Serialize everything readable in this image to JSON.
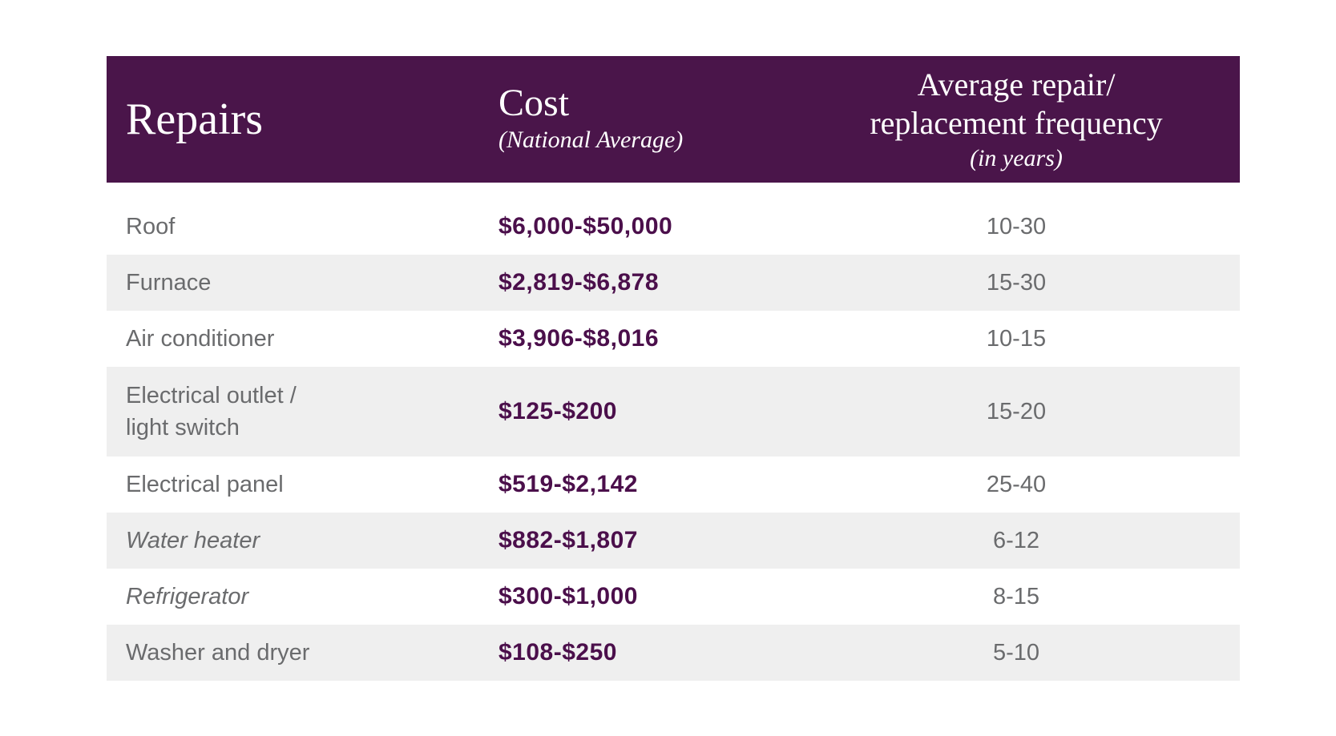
{
  "chart_data": {
    "type": "table",
    "columns": [
      {
        "label": "Repairs"
      },
      {
        "label": "Cost",
        "sublabel": "(National Average)"
      },
      {
        "label": "Average repair/\nreplacement frequency",
        "sublabel": "(in years)"
      }
    ],
    "rows": [
      {
        "repair": "Roof",
        "cost": "$6,000-$50,000",
        "frequency_years": "10-30"
      },
      {
        "repair": "Furnace",
        "cost": "$2,819-$6,878",
        "frequency_years": "15-30"
      },
      {
        "repair": "Air conditioner",
        "cost": "$3,906-$8,016",
        "frequency_years": "10-15"
      },
      {
        "repair": "Electrical outlet /\nlight switch",
        "cost": "$125-$200",
        "frequency_years": "15-20"
      },
      {
        "repair": "Electrical panel",
        "cost": "$519-$2,142",
        "frequency_years": "25-40"
      },
      {
        "repair": "Water heater",
        "cost": "$882-$1,807",
        "frequency_years": "6-12"
      },
      {
        "repair": "Refrigerator",
        "cost": "$300-$1,000",
        "frequency_years": "8-15"
      },
      {
        "repair": "Washer and dryer",
        "cost": "$108-$250",
        "frequency_years": "5-10"
      }
    ],
    "layout": {
      "striped_rows": "even rows shaded",
      "italic_rows": [
        "Water heater",
        "Refrigerator"
      ]
    }
  },
  "colors": {
    "header_background": "#4A154A",
    "header_text": "#FFFFFF",
    "cost_value_text": "#4B0F4B",
    "row_stripe": "#EFEFEF",
    "body_text": "#6A6B6D",
    "page_background": "#FFFFFF"
  }
}
